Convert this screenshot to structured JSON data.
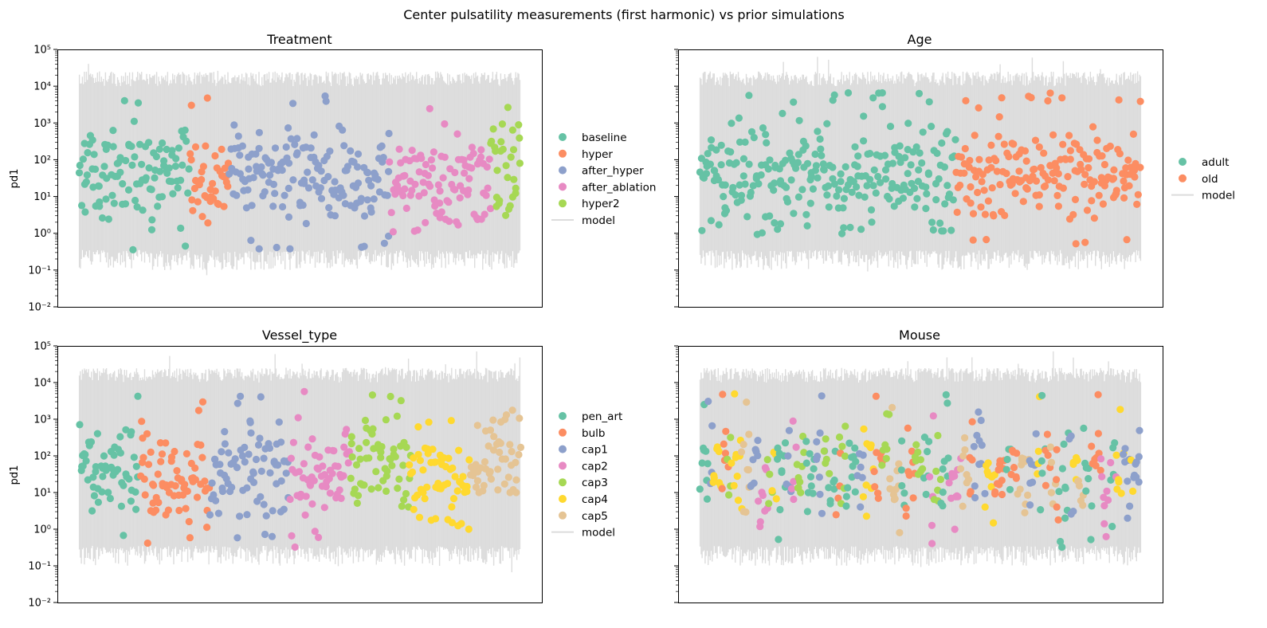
{
  "figure": {
    "suptitle": "Center pulsatility measurements (first harmonic) vs prior simulations"
  },
  "colors": {
    "model_band": "#dcdcdc",
    "set2": [
      "#66c2a5",
      "#fc8d62",
      "#8da0cb",
      "#e78ac3",
      "#a6d854",
      "#ffd92f",
      "#e5c494"
    ]
  },
  "chart_data": [
    {
      "type": "scatter",
      "title": "Treatment",
      "xlabel": "",
      "ylabel": "pd1",
      "yscale": "log",
      "ylim": [
        0.01,
        100000
      ],
      "yticks": [
        "10⁻²",
        "10⁻¹",
        "10⁰",
        "10¹",
        "10²",
        "10³",
        "10⁴",
        "10⁵"
      ],
      "x_ticks_visible": false,
      "grid": false,
      "legend_position": "right",
      "model_series": {
        "name": "model",
        "band_low": [
          0.1,
          0.35
        ],
        "band_high": [
          10000,
          25000
        ]
      },
      "n_points": 440,
      "series": [
        {
          "name": "baseline",
          "color": "#66c2a5",
          "count": 110,
          "ymin": 0.3,
          "ymax": 6000
        },
        {
          "name": "hyper",
          "color": "#fc8d62",
          "count": 40,
          "ymin": 1.0,
          "ymax": 6000
        },
        {
          "name": "after_hyper",
          "color": "#8da0cb",
          "count": 160,
          "ymin": 0.35,
          "ymax": 6000
        },
        {
          "name": "after_ablation",
          "color": "#e78ac3",
          "count": 100,
          "ymin": 1.0,
          "ymax": 3000
        },
        {
          "name": "hyper2",
          "color": "#a6d854",
          "count": 30,
          "ymin": 3.0,
          "ymax": 5000
        }
      ]
    },
    {
      "type": "scatter",
      "title": "Age",
      "xlabel": "",
      "ylabel": "",
      "yscale": "log",
      "ylim": [
        0.01,
        100000
      ],
      "yticks": [],
      "x_ticks_visible": false,
      "grid": false,
      "legend_position": "right",
      "model_series": {
        "name": "model",
        "band_low": [
          0.1,
          0.35
        ],
        "band_high": [
          10000,
          25000
        ]
      },
      "n_points": 440,
      "series": [
        {
          "name": "adult",
          "color": "#66c2a5",
          "count": 255,
          "ymin": 0.9,
          "ymax": 7000
        },
        {
          "name": "old",
          "color": "#fc8d62",
          "count": 185,
          "ymin": 0.3,
          "ymax": 7000
        }
      ]
    },
    {
      "type": "scatter",
      "title": "Vessel_type",
      "xlabel": "",
      "ylabel": "pd1",
      "yscale": "log",
      "ylim": [
        0.01,
        100000
      ],
      "yticks": [
        "10⁻²",
        "10⁻¹",
        "10⁰",
        "10¹",
        "10²",
        "10³",
        "10⁴",
        "10⁵"
      ],
      "x_ticks_visible": false,
      "grid": false,
      "legend_position": "right",
      "model_series": {
        "name": "model",
        "band_low": [
          0.1,
          0.35
        ],
        "band_high": [
          10000,
          25000
        ]
      },
      "n_points": 440,
      "series": [
        {
          "name": "pen_art",
          "color": "#66c2a5",
          "count": 60,
          "ymin": 0.35,
          "ymax": 6000
        },
        {
          "name": "bulb",
          "color": "#fc8d62",
          "count": 70,
          "ymin": 0.35,
          "ymax": 3000
        },
        {
          "name": "cap1",
          "color": "#8da0cb",
          "count": 80,
          "ymin": 0.5,
          "ymax": 5000
        },
        {
          "name": "cap2",
          "color": "#e78ac3",
          "count": 60,
          "ymin": 0.3,
          "ymax": 6000
        },
        {
          "name": "cap3",
          "color": "#a6d854",
          "count": 60,
          "ymin": 3.5,
          "ymax": 6000
        },
        {
          "name": "cap4",
          "color": "#ffd92f",
          "count": 60,
          "ymin": 1.0,
          "ymax": 3000
        },
        {
          "name": "cap5",
          "color": "#e5c494",
          "count": 50,
          "ymin": 10,
          "ymax": 2500
        }
      ]
    },
    {
      "type": "scatter",
      "title": "Mouse",
      "xlabel": "",
      "ylabel": "",
      "yscale": "log",
      "ylim": [
        0.01,
        100000
      ],
      "yticks": [],
      "x_ticks_visible": false,
      "grid": false,
      "legend": false,
      "model_series": {
        "name": "model",
        "band_low": [
          0.1,
          0.35
        ],
        "band_high": [
          10000,
          25000
        ]
      },
      "n_points": 440,
      "series": [
        {
          "name": "",
          "color": "#66c2a5",
          "count": 100,
          "ymin": 0.3,
          "ymax": 5000
        },
        {
          "name": "",
          "color": "#fc8d62",
          "count": 70,
          "ymin": 0.9,
          "ymax": 6000
        },
        {
          "name": "",
          "color": "#8da0cb",
          "count": 70,
          "ymin": 2.0,
          "ymax": 6000
        },
        {
          "name": "",
          "color": "#e78ac3",
          "count": 40,
          "ymin": 0.35,
          "ymax": 2000
        },
        {
          "name": "",
          "color": "#a6d854",
          "count": 50,
          "ymin": 5.0,
          "ymax": 2000
        },
        {
          "name": "",
          "color": "#ffd92f",
          "count": 60,
          "ymin": 0.9,
          "ymax": 6000
        },
        {
          "name": "",
          "color": "#e5c494",
          "count": 50,
          "ymin": 0.35,
          "ymax": 3000
        }
      ]
    }
  ]
}
